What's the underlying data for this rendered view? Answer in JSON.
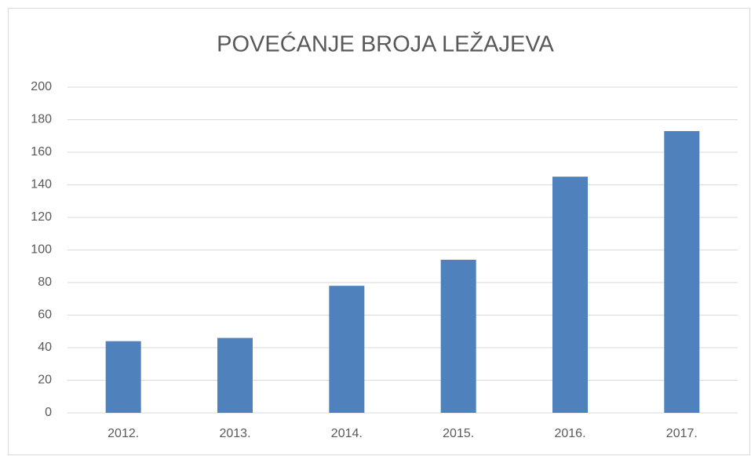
{
  "chart_data": {
    "type": "bar",
    "title": "POVEĆANJE BROJA LEŽAJEVA",
    "categories": [
      "2012.",
      "2013.",
      "2014.",
      "2015.",
      "2016.",
      "2017."
    ],
    "values": [
      44,
      46,
      78,
      94,
      145,
      173
    ],
    "color": "#4f81bd",
    "ylim": [
      0,
      200
    ],
    "yticks": [
      0,
      20,
      40,
      60,
      80,
      100,
      120,
      140,
      160,
      180,
      200
    ],
    "grid": true
  }
}
